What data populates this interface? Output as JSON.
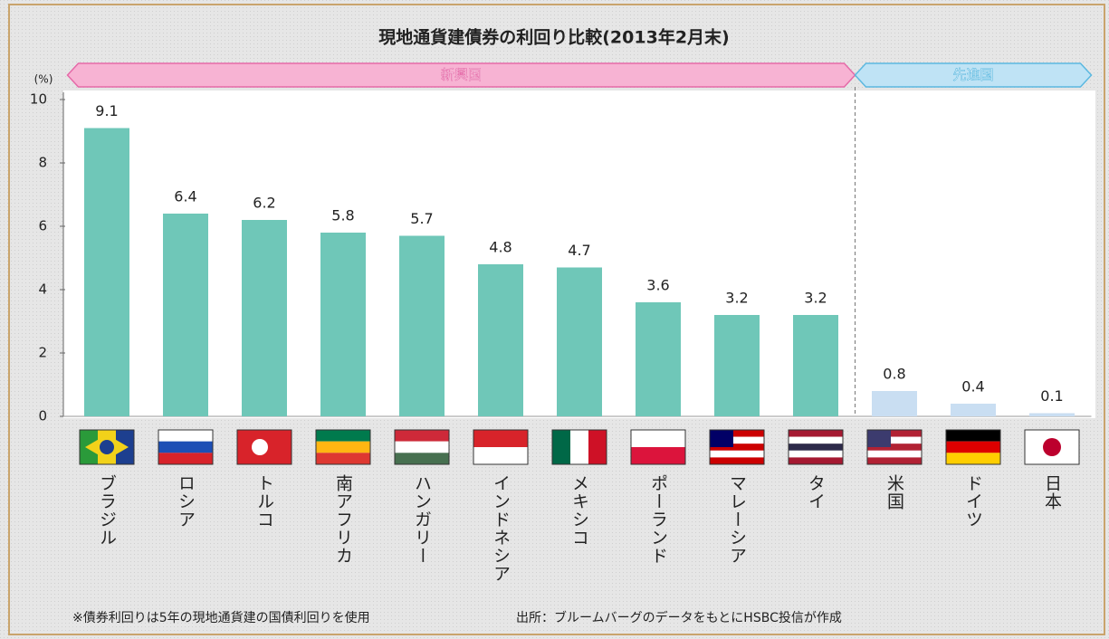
{
  "chart_data": {
    "type": "bar",
    "title": "現地通貨建債券の利回り比較(2013年2月末)",
    "y_unit": "(%)",
    "categories": [
      "ブラジル",
      "ロシア",
      "トルコ",
      "南アフリカ",
      "ハンガリー",
      "インドネシア",
      "メキシコ",
      "ポーランド",
      "マレーシア",
      "タイ",
      "米国",
      "ドイツ",
      "日本"
    ],
    "values": [
      9.1,
      6.4,
      6.2,
      5.8,
      5.7,
      4.8,
      4.7,
      3.6,
      3.2,
      3.2,
      0.8,
      0.4,
      0.1
    ],
    "groups": [
      {
        "name": "新興国",
        "size": 10,
        "color": "#f7b3d3",
        "bar_color": "#6fc7b8"
      },
      {
        "name": "先進国",
        "size": 3,
        "color": "#bfe3f5",
        "bar_color": "#c9def2"
      }
    ],
    "ylim": [
      0,
      10
    ],
    "yticks": [
      0,
      2,
      4,
      6,
      8,
      10
    ],
    "notes": [
      "※債券利回りは5年の現地通貨建の国債利回りを使用",
      "出所：ブルームバーグのデータをもとにHSBC投信が作成"
    ]
  }
}
